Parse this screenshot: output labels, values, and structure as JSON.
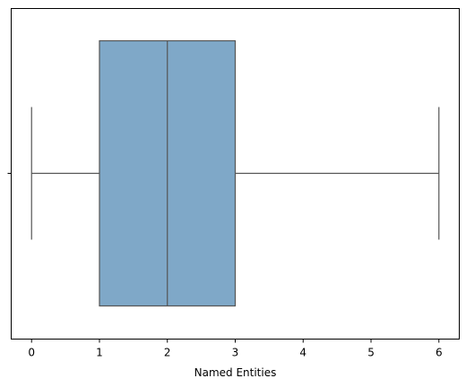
{
  "chart_data": {
    "type": "box",
    "title": "",
    "xlabel": "Named Entities",
    "ylabel": "",
    "xlim": [
      -0.3,
      6.3
    ],
    "xticks": [
      0,
      1,
      2,
      3,
      4,
      5,
      6
    ],
    "xtick_labels": [
      "0",
      "1",
      "2",
      "3",
      "4",
      "5",
      "6"
    ],
    "grid": false,
    "orientation": "horizontal",
    "box": {
      "whisker_low": 0,
      "q1": 1,
      "median": 2,
      "q3": 3,
      "whisker_high": 6
    },
    "colors": {
      "box_fill": "#7fa8c8",
      "line": "#555555",
      "axis": "#000000"
    }
  }
}
